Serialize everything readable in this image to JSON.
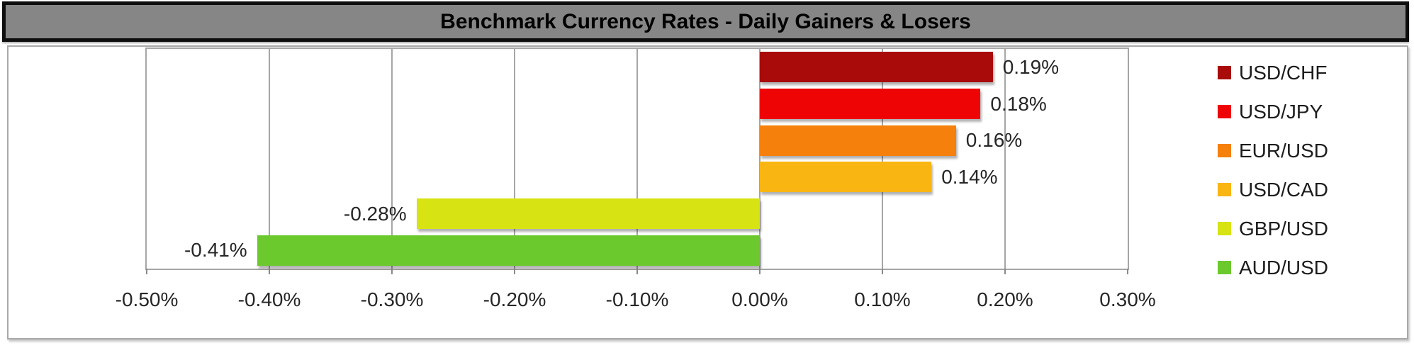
{
  "title": "Benchmark Currency Rates - Daily Gainers & Losers",
  "colors": {
    "title_bar_bg": "#868686",
    "title_bar_border": "#0e0e0e",
    "grid": "#a6a6a6",
    "text": "#262626"
  },
  "chart_data": {
    "type": "bar",
    "orientation": "horizontal",
    "title": "Benchmark Currency Rates - Daily Gainers & Losers",
    "categories": [
      "USD/CHF",
      "USD/JPY",
      "EUR/USD",
      "USD/CAD",
      "GBP/USD",
      "AUD/USD"
    ],
    "values": [
      0.19,
      0.18,
      0.16,
      0.14,
      -0.28,
      -0.41
    ],
    "value_labels": [
      "0.19%",
      "0.18%",
      "0.16%",
      "0.14%",
      "-0.28%",
      "-0.41%"
    ],
    "bar_colors": [
      "#a90b0b",
      "#ee0404",
      "#f5800b",
      "#f9b512",
      "#d7e312",
      "#6cc92d"
    ],
    "xlabel": "",
    "ylabel": "",
    "xlim": [
      -0.5,
      0.3
    ],
    "x_ticks": [
      {
        "value": -0.5,
        "label": "-0.50%"
      },
      {
        "value": -0.4,
        "label": "-0.40%"
      },
      {
        "value": -0.3,
        "label": "-0.30%"
      },
      {
        "value": -0.2,
        "label": "-0.20%"
      },
      {
        "value": -0.1,
        "label": "-0.10%"
      },
      {
        "value": 0.0,
        "label": "0.00%"
      },
      {
        "value": 0.1,
        "label": "0.10%"
      },
      {
        "value": 0.2,
        "label": "0.20%"
      },
      {
        "value": 0.3,
        "label": "0.30%"
      }
    ],
    "grid": true,
    "legend_position": "right",
    "legend": [
      "USD/CHF",
      "USD/JPY",
      "EUR/USD",
      "USD/CAD",
      "GBP/USD",
      "AUD/USD"
    ]
  }
}
